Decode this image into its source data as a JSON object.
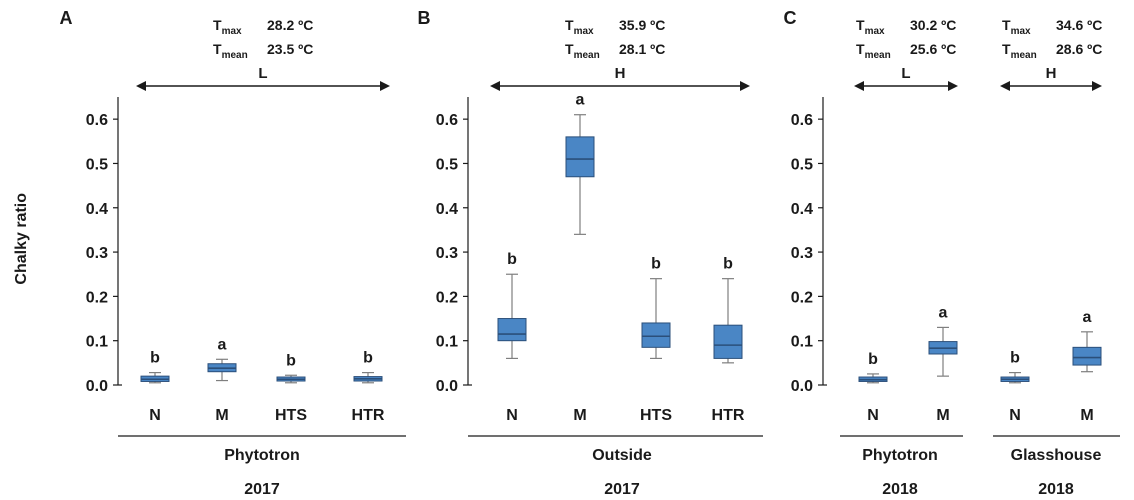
{
  "chart_data": {
    "type": "box",
    "ylabel": "Chalky ratio",
    "ylim": [
      0,
      0.65
    ],
    "yticks": [
      "0.0",
      "0.1",
      "0.2",
      "0.3",
      "0.4",
      "0.5",
      "0.6"
    ],
    "colors": {
      "box_fill": "#4a86c5",
      "box_edge": "#2b4f7a",
      "whisker": "#7f7f7f",
      "axis": "#1a1a1a"
    },
    "panels": [
      {
        "letter": "A",
        "temps": [
          {
            "tmax_label": "T",
            "tmax_sub": "max",
            "tmax_value": "28.2 ºC",
            "tmean_label": "T",
            "tmean_sub": "mean",
            "tmean_value": "23.5 ºC",
            "range_label": "L"
          }
        ],
        "categories": [
          "N",
          "M",
          "HTS",
          "HTR"
        ],
        "groups": [
          {
            "label": "Phytotron",
            "year": "2017"
          }
        ],
        "boxes": [
          {
            "category": "N",
            "min": 0.005,
            "q1": 0.008,
            "median": 0.013,
            "q3": 0.02,
            "max": 0.028,
            "sig": "b"
          },
          {
            "category": "M",
            "min": 0.01,
            "q1": 0.03,
            "median": 0.038,
            "q3": 0.048,
            "max": 0.058,
            "sig": "a"
          },
          {
            "category": "HTS",
            "min": 0.005,
            "q1": 0.009,
            "median": 0.013,
            "q3": 0.018,
            "max": 0.022,
            "sig": "b"
          },
          {
            "category": "HTR",
            "min": 0.005,
            "q1": 0.009,
            "median": 0.014,
            "q3": 0.019,
            "max": 0.028,
            "sig": "b"
          }
        ]
      },
      {
        "letter": "B",
        "temps": [
          {
            "tmax_label": "T",
            "tmax_sub": "max",
            "tmax_value": "35.9 ºC",
            "tmean_label": "T",
            "tmean_sub": "mean",
            "tmean_value": "28.1 ºC",
            "range_label": "H"
          }
        ],
        "categories": [
          "N",
          "M",
          "HTS",
          "HTR"
        ],
        "groups": [
          {
            "label": "Outside",
            "year": "2017"
          }
        ],
        "boxes": [
          {
            "category": "N",
            "min": 0.06,
            "q1": 0.1,
            "median": 0.115,
            "q3": 0.15,
            "max": 0.25,
            "sig": "b"
          },
          {
            "category": "M",
            "min": 0.34,
            "q1": 0.47,
            "median": 0.51,
            "q3": 0.56,
            "max": 0.61,
            "sig": "a"
          },
          {
            "category": "HTS",
            "min": 0.06,
            "q1": 0.085,
            "median": 0.11,
            "q3": 0.14,
            "max": 0.24,
            "sig": "b"
          },
          {
            "category": "HTR",
            "min": 0.05,
            "q1": 0.06,
            "median": 0.09,
            "q3": 0.135,
            "max": 0.24,
            "sig": "b"
          }
        ]
      },
      {
        "letter": "C",
        "temps": [
          {
            "tmax_label": "T",
            "tmax_sub": "max",
            "tmax_value": "30.2 ºC",
            "tmean_label": "T",
            "tmean_sub": "mean",
            "tmean_value": "25.6 ºC",
            "range_label": "L"
          },
          {
            "tmax_label": "T",
            "tmax_sub": "max",
            "tmax_value": "34.6 ºC",
            "tmean_label": "T",
            "tmean_sub": "mean",
            "tmean_value": "28.6 ºC",
            "range_label": "H"
          }
        ],
        "categories": [
          "N",
          "M",
          "N",
          "M"
        ],
        "groups": [
          {
            "label": "Phytotron",
            "year": "2018"
          },
          {
            "label": "Glasshouse",
            "year": "2018"
          }
        ],
        "boxes": [
          {
            "category": "N",
            "min": 0.005,
            "q1": 0.008,
            "median": 0.012,
            "q3": 0.018,
            "max": 0.025,
            "sig": "b"
          },
          {
            "category": "M",
            "min": 0.02,
            "q1": 0.07,
            "median": 0.083,
            "q3": 0.098,
            "max": 0.13,
            "sig": "a"
          },
          {
            "category": "N",
            "min": 0.005,
            "q1": 0.008,
            "median": 0.013,
            "q3": 0.018,
            "max": 0.028,
            "sig": "b"
          },
          {
            "category": "M",
            "min": 0.03,
            "q1": 0.045,
            "median": 0.062,
            "q3": 0.085,
            "max": 0.12,
            "sig": "a"
          }
        ]
      }
    ]
  }
}
